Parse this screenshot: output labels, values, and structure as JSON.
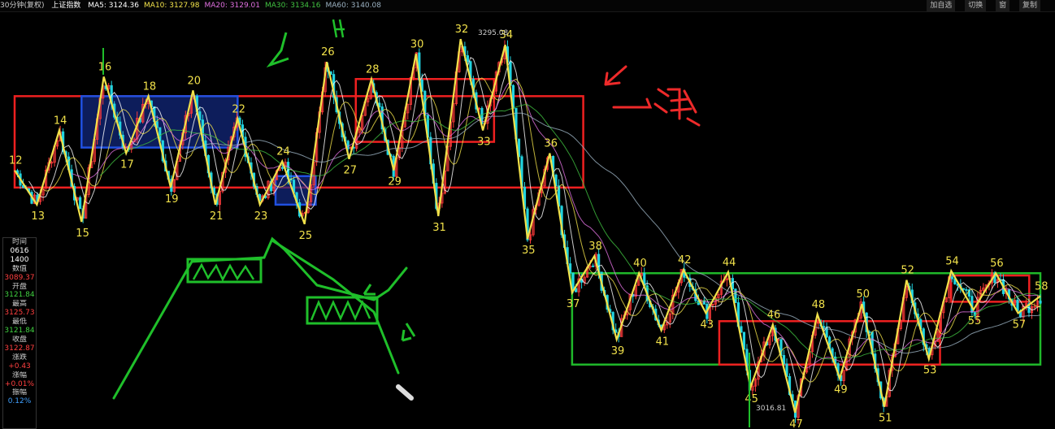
{
  "window": {
    "period": "30分钟(复权)",
    "symbol": "上证指数",
    "ma": [
      {
        "label": "MA5",
        "value": "3124.36",
        "color": "#ffffff"
      },
      {
        "label": "MA10",
        "value": "3127.98",
        "color": "#f1e14a"
      },
      {
        "label": "MA20",
        "value": "3129.01",
        "color": "#e070e0"
      },
      {
        "label": "MA30",
        "value": "3134.16",
        "color": "#40c040"
      },
      {
        "label": "MA60",
        "value": "3140.08",
        "color": "#9ab0c0"
      }
    ],
    "buttons": [
      "加自选",
      "切换",
      "窗",
      "复制"
    ]
  },
  "info_panel": {
    "rows": [
      {
        "text": "时间",
        "color": "#cccccc"
      },
      {
        "text": "0616",
        "color": "#ffffff"
      },
      {
        "text": "1400",
        "color": "#ffffff"
      },
      {
        "text": "数值",
        "color": "#cccccc"
      },
      {
        "text": "3089.37",
        "color": "#ff4040"
      },
      {
        "text": "开盘",
        "color": "#cccccc"
      },
      {
        "text": "3121.84",
        "color": "#40d040"
      },
      {
        "text": "最高",
        "color": "#cccccc"
      },
      {
        "text": "3125.73",
        "color": "#ff4040"
      },
      {
        "text": "最低",
        "color": "#cccccc"
      },
      {
        "text": "3121.84",
        "color": "#40d040"
      },
      {
        "text": "收盘",
        "color": "#cccccc"
      },
      {
        "text": "3122.87",
        "color": "#ff4040"
      },
      {
        "text": "涨跌",
        "color": "#cccccc"
      },
      {
        "text": "+0.43",
        "color": "#ff4040"
      },
      {
        "text": "涨幅",
        "color": "#cccccc"
      },
      {
        "text": "+0.01%",
        "color": "#ff4040"
      },
      {
        "text": "振幅",
        "color": "#cccccc"
      },
      {
        "text": "0.12%",
        "color": "#40a0ff"
      }
    ]
  },
  "annotations": {
    "price_high": "3295.08",
    "price_low": "3016.81",
    "handwritten": "→ 滑场"
  },
  "chart_data": {
    "type": "line",
    "series_name": "上证指数 30分钟 波段编号",
    "waves": [
      {
        "n": 12,
        "y": 3180
      },
      {
        "n": 13,
        "y": 3150
      },
      {
        "n": 14,
        "y": 3215
      },
      {
        "n": 15,
        "y": 3135
      },
      {
        "n": 16,
        "y": 3262
      },
      {
        "n": 17,
        "y": 3195
      },
      {
        "n": 18,
        "y": 3245
      },
      {
        "n": 19,
        "y": 3165
      },
      {
        "n": 20,
        "y": 3250
      },
      {
        "n": 21,
        "y": 3150
      },
      {
        "n": 22,
        "y": 3225
      },
      {
        "n": 23,
        "y": 3150
      },
      {
        "n": 24,
        "y": 3188
      },
      {
        "n": 25,
        "y": 3133
      },
      {
        "n": 26,
        "y": 3275
      },
      {
        "n": 27,
        "y": 3190
      },
      {
        "n": 28,
        "y": 3260
      },
      {
        "n": 29,
        "y": 3180
      },
      {
        "n": 30,
        "y": 3282
      },
      {
        "n": 31,
        "y": 3140
      },
      {
        "n": 32,
        "y": 3295
      },
      {
        "n": 33,
        "y": 3215
      },
      {
        "n": 34,
        "y": 3290
      },
      {
        "n": 35,
        "y": 3120
      },
      {
        "n": 36,
        "y": 3195
      },
      {
        "n": 37,
        "y": 3073
      },
      {
        "n": 38,
        "y": 3105
      },
      {
        "n": 39,
        "y": 3032
      },
      {
        "n": 40,
        "y": 3090
      },
      {
        "n": 41,
        "y": 3040
      },
      {
        "n": 42,
        "y": 3093
      },
      {
        "n": 43,
        "y": 3055
      },
      {
        "n": 44,
        "y": 3091
      },
      {
        "n": 45,
        "y": 2990
      },
      {
        "n": 46,
        "y": 3045
      },
      {
        "n": 47,
        "y": 2968
      },
      {
        "n": 48,
        "y": 3054
      },
      {
        "n": 49,
        "y": 2998
      },
      {
        "n": 50,
        "y": 3063
      },
      {
        "n": 51,
        "y": 2973
      },
      {
        "n": 52,
        "y": 3084
      },
      {
        "n": 53,
        "y": 3015
      },
      {
        "n": 54,
        "y": 3092
      },
      {
        "n": 55,
        "y": 3058
      },
      {
        "n": 56,
        "y": 3090
      },
      {
        "n": 57,
        "y": 3055
      },
      {
        "n": 58,
        "y": 3070
      }
    ],
    "pivot_boxes": [
      {
        "color": "red",
        "y": [
          3165,
          3245
        ]
      },
      {
        "color": "blue",
        "y": [
          3200,
          3245
        ]
      },
      {
        "color": "blue",
        "y": [
          3150,
          3175
        ]
      },
      {
        "color": "red",
        "y": [
          3205,
          3260
        ]
      },
      {
        "color": "green",
        "y": [
          3010,
          3090
        ]
      },
      {
        "color": "red",
        "y": [
          3010,
          3048
        ]
      },
      {
        "color": "red",
        "y": [
          3065,
          3088
        ]
      }
    ],
    "ylim": [
      2960,
      3305
    ],
    "grid": false
  }
}
